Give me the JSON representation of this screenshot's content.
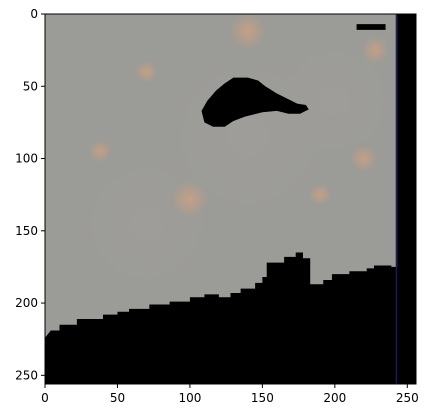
{
  "chart_data": {
    "type": "heatmap",
    "title": "",
    "xlabel": "",
    "ylabel": "",
    "xlim": [
      0,
      256
    ],
    "ylim": [
      256,
      0
    ],
    "x_ticks": [
      "0",
      "50",
      "100",
      "150",
      "200",
      "250"
    ],
    "y_ticks": [
      "0",
      "50",
      "100",
      "150",
      "200",
      "250"
    ],
    "grid": false,
    "legend": "none",
    "image": {
      "background": "#9b9b97",
      "warm_spot_color": "#c6a086",
      "shadow_color": "#000000",
      "soft_spots": [
        {
          "x": 140,
          "y": 85,
          "r": 55
        },
        {
          "x": 70,
          "y": 145,
          "r": 45
        },
        {
          "x": 200,
          "y": 60,
          "r": 40
        }
      ],
      "warm_spots": [
        {
          "x": 100,
          "y": 128,
          "r": 8
        },
        {
          "x": 140,
          "y": 12,
          "r": 8
        },
        {
          "x": 70,
          "y": 40,
          "r": 5
        },
        {
          "x": 228,
          "y": 25,
          "r": 6
        },
        {
          "x": 220,
          "y": 100,
          "r": 6
        },
        {
          "x": 190,
          "y": 125,
          "r": 5
        },
        {
          "x": 38,
          "y": 95,
          "r": 5
        }
      ],
      "blob": [
        [
          108,
          67
        ],
        [
          112,
          60
        ],
        [
          118,
          53
        ],
        [
          124,
          48
        ],
        [
          130,
          44
        ],
        [
          140,
          44
        ],
        [
          147,
          46
        ],
        [
          152,
          50
        ],
        [
          160,
          55
        ],
        [
          168,
          59
        ],
        [
          174,
          62
        ],
        [
          180,
          63
        ],
        [
          182,
          66
        ],
        [
          176,
          69
        ],
        [
          168,
          69
        ],
        [
          160,
          67
        ],
        [
          150,
          68
        ],
        [
          138,
          71
        ],
        [
          130,
          74
        ],
        [
          124,
          78
        ],
        [
          116,
          78
        ],
        [
          110,
          75
        ]
      ],
      "ground": [
        [
          0,
          224
        ],
        [
          4,
          219
        ],
        [
          10,
          219
        ],
        [
          10,
          215
        ],
        [
          22,
          215
        ],
        [
          22,
          211
        ],
        [
          40,
          211
        ],
        [
          40,
          208
        ],
        [
          50,
          208
        ],
        [
          50,
          206
        ],
        [
          58,
          206
        ],
        [
          58,
          204
        ],
        [
          72,
          204
        ],
        [
          72,
          201
        ],
        [
          86,
          201
        ],
        [
          86,
          199
        ],
        [
          100,
          199
        ],
        [
          100,
          196
        ],
        [
          110,
          196
        ],
        [
          110,
          194
        ],
        [
          120,
          194
        ],
        [
          120,
          196
        ],
        [
          128,
          196
        ],
        [
          128,
          193
        ],
        [
          135,
          193
        ],
        [
          135,
          190
        ],
        [
          145,
          190
        ],
        [
          145,
          186
        ],
        [
          150,
          186
        ],
        [
          150,
          182
        ],
        [
          153,
          182
        ],
        [
          153,
          172
        ],
        [
          165,
          172
        ],
        [
          165,
          168
        ],
        [
          173,
          168
        ],
        [
          173,
          165
        ],
        [
          178,
          165
        ],
        [
          178,
          169
        ],
        [
          183,
          169
        ],
        [
          183,
          187
        ],
        [
          192,
          187
        ],
        [
          192,
          184
        ],
        [
          198,
          184
        ],
        [
          198,
          180
        ],
        [
          210,
          180
        ],
        [
          210,
          178
        ],
        [
          222,
          178
        ],
        [
          222,
          176
        ],
        [
          227,
          176
        ],
        [
          227,
          174
        ],
        [
          239,
          174
        ],
        [
          239,
          175
        ],
        [
          243,
          175
        ],
        [
          243,
          0
        ],
        [
          256,
          0
        ],
        [
          256,
          256
        ],
        [
          0,
          256
        ]
      ],
      "bar_right": [
        [
          242,
          0
        ],
        [
          243,
          0
        ],
        [
          243,
          256
        ],
        [
          242,
          256
        ]
      ],
      "ledge_top_right": [
        [
          215,
          7
        ],
        [
          235,
          7
        ],
        [
          235,
          11
        ],
        [
          215,
          11
        ]
      ]
    }
  }
}
